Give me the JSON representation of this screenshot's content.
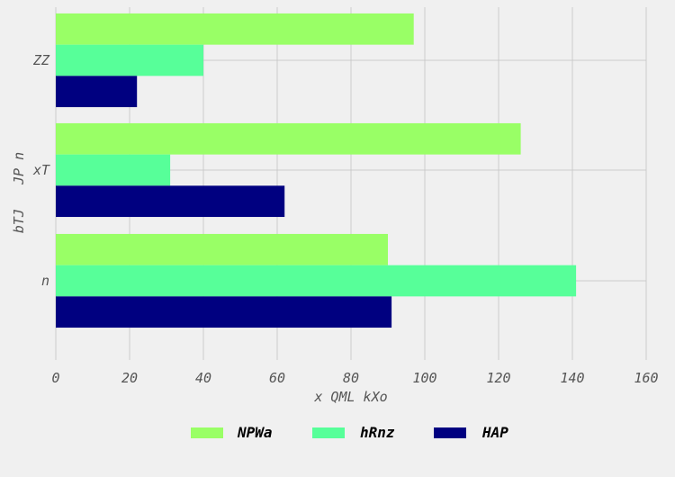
{
  "chart_data": {
    "type": "bar",
    "orientation": "horizontal",
    "categories": [
      "ZZ",
      "xT",
      "n"
    ],
    "series": [
      {
        "name": "NPWa",
        "color": "#99ff66",
        "values": [
          97,
          126,
          90
        ]
      },
      {
        "name": "hRnz",
        "color": "#57ff99",
        "values": [
          40,
          31,
          141
        ]
      },
      {
        "name": "HAP",
        "color": "#000080",
        "values": [
          22,
          62,
          91
        ]
      }
    ],
    "xlabel": "x QML kXo",
    "ylabel": "bTJ   JP n",
    "xlim": [
      0,
      160
    ],
    "xticks": [
      0,
      20,
      40,
      60,
      80,
      100,
      120,
      140,
      160
    ],
    "grid": true,
    "legend_position": "bottom-center",
    "background_color": "#f0f0f0",
    "grid_color": "#cbcbcb"
  }
}
